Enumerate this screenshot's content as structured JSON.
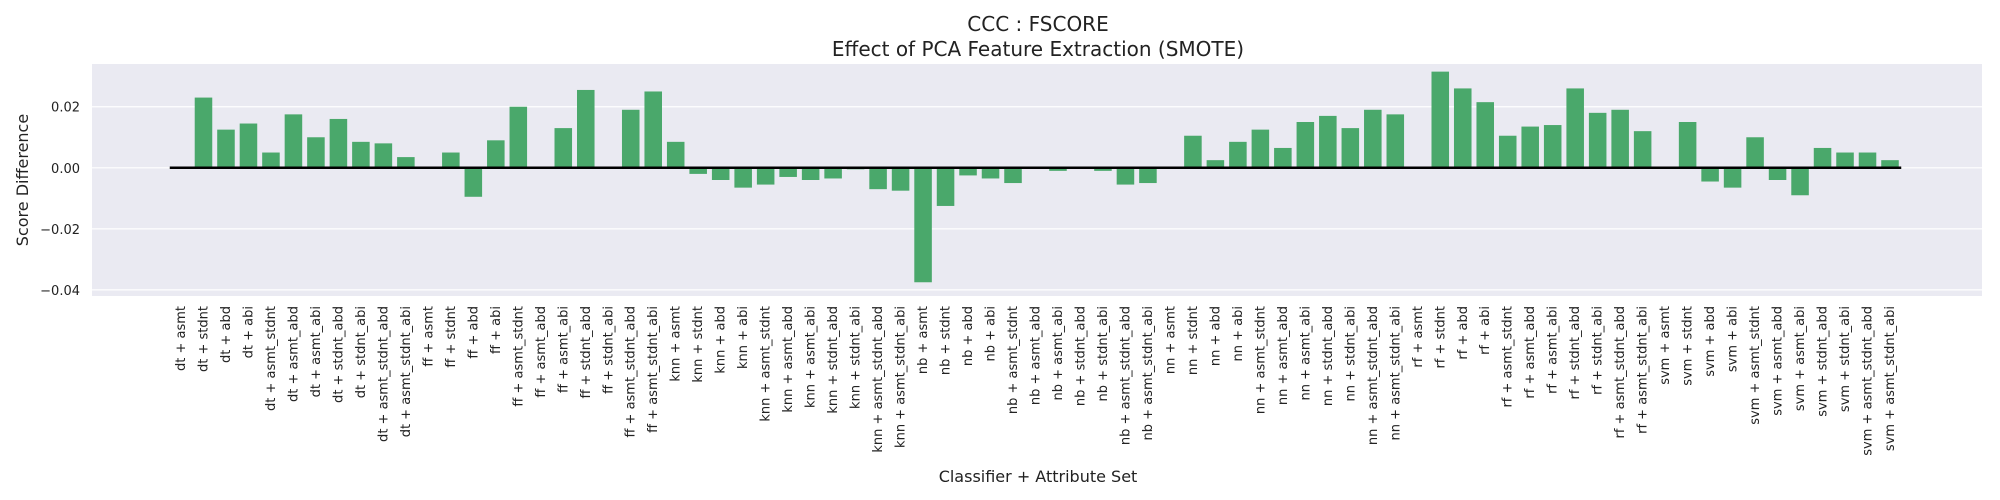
{
  "chart_data": {
    "type": "bar",
    "title": "CCC : FSCORE",
    "subtitle": "Effect of PCA Feature Extraction (SMOTE)",
    "xlabel": "Classifier + Attribute Set",
    "ylabel": "Score Difference",
    "ylim": [
      -0.042,
      0.034
    ],
    "yticks": [
      0.02,
      0.0,
      -0.02,
      -0.04
    ],
    "ytick_labels": [
      "0.02",
      "0.00",
      "−0.02",
      "−0.04"
    ],
    "grid": true,
    "bar_color": "#4aa86b",
    "background_color": "#eaeaf2",
    "zero_line": true,
    "categories": [
      "dt + asmt",
      "dt + stdnt",
      "dt + abd",
      "dt + abi",
      "dt + asmt_stdnt",
      "dt + asmt_abd",
      "dt + asmt_abi",
      "dt + stdnt_abd",
      "dt + stdnt_abi",
      "dt + asmt_stdnt_abd",
      "dt + asmt_stdnt_abi",
      "ff + asmt",
      "ff + stdnt",
      "ff + abd",
      "ff + abi",
      "ff + asmt_stdnt",
      "ff + asmt_abd",
      "ff + asmt_abi",
      "ff + stdnt_abd",
      "ff + stdnt_abi",
      "ff + asmt_stdnt_abd",
      "ff + asmt_stdnt_abi",
      "knn + asmt",
      "knn + stdnt",
      "knn + abd",
      "knn + abi",
      "knn + asmt_stdnt",
      "knn + asmt_abd",
      "knn + asmt_abi",
      "knn + stdnt_abd",
      "knn + stdnt_abi",
      "knn + asmt_stdnt_abd",
      "knn + asmt_stdnt_abi",
      "nb + asmt",
      "nb + stdnt",
      "nb + abd",
      "nb + abi",
      "nb + asmt_stdnt",
      "nb + asmt_abd",
      "nb + asmt_abi",
      "nb + stdnt_abd",
      "nb + stdnt_abi",
      "nb + asmt_stdnt_abd",
      "nb + asmt_stdnt_abi",
      "nn + asmt",
      "nn + stdnt",
      "nn + abd",
      "nn + abi",
      "nn + asmt_stdnt",
      "nn + asmt_abd",
      "nn + asmt_abi",
      "nn + stdnt_abd",
      "nn + stdnt_abi",
      "nn + asmt_stdnt_abd",
      "nn + asmt_stdnt_abi",
      "rf + asmt",
      "rf + stdnt",
      "rf + abd",
      "rf + abi",
      "rf + asmt_stdnt",
      "rf + asmt_abd",
      "rf + asmt_abi",
      "rf + stdnt_abd",
      "rf + stdnt_abi",
      "rf + asmt_stdnt_abd",
      "rf + asmt_stdnt_abi",
      "svm + asmt",
      "svm + stdnt",
      "svm + abd",
      "svm + abi",
      "svm + asmt_stdnt",
      "svm + asmt_abd",
      "svm + asmt_abi",
      "svm + stdnt_abd",
      "svm + stdnt_abi",
      "svm + asmt_stdnt_abd",
      "svm + asmt_stdnt_abi"
    ],
    "values": [
      0.0,
      0.023,
      0.0125,
      0.0145,
      0.005,
      0.0175,
      0.01,
      0.016,
      0.0085,
      0.008,
      0.0035,
      0.0,
      0.005,
      -0.0095,
      0.009,
      0.02,
      0.0,
      0.013,
      0.0255,
      0.0,
      0.019,
      0.025,
      0.0085,
      -0.002,
      -0.004,
      -0.0065,
      -0.0055,
      -0.003,
      -0.004,
      -0.0035,
      -0.0005,
      -0.007,
      -0.0075,
      -0.0375,
      -0.0125,
      -0.0025,
      -0.0035,
      -0.005,
      0.0,
      -0.001,
      0.0,
      -0.001,
      -0.0055,
      -0.005,
      0.0,
      0.0105,
      0.0025,
      0.0085,
      0.0125,
      0.0065,
      0.015,
      0.017,
      0.013,
      0.019,
      0.0175,
      0.0,
      0.0315,
      0.026,
      0.0215,
      0.0105,
      0.0135,
      0.014,
      0.026,
      0.018,
      0.019,
      0.012,
      0.0,
      0.015,
      -0.0045,
      -0.0065,
      0.01,
      -0.004,
      -0.009,
      0.0065,
      0.005,
      0.005,
      0.0025
    ]
  }
}
